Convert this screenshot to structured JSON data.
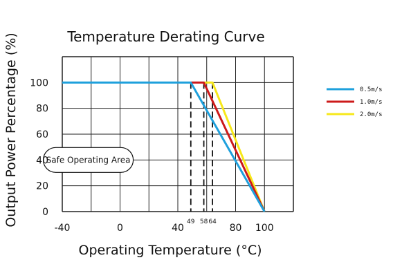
{
  "chart_data": {
    "type": "line",
    "title": "Temperature Derating Curve",
    "xlabel": "Operating Temperature (°C)",
    "ylabel": "Output Power Percentage (%)",
    "xlim": [
      -40,
      120
    ],
    "ylim": [
      0,
      120
    ],
    "x_ticks": [
      "-40",
      "0",
      "40",
      "80",
      "100"
    ],
    "x_tick_values": [
      -40,
      0,
      40,
      80,
      100
    ],
    "y_ticks": [
      "0",
      "20",
      "40",
      "60",
      "80",
      "100"
    ],
    "y_tick_values": [
      0,
      20,
      40,
      60,
      80,
      100
    ],
    "minor_x_ticks": [
      "49",
      "58",
      "64"
    ],
    "minor_x_tick_values": [
      49,
      58,
      64
    ],
    "grid": true,
    "legend_position": "right",
    "annotations": [
      {
        "text": "Safe Operating Area",
        "x": -22,
        "y": 40
      }
    ],
    "series": [
      {
        "name": "0.5m/s",
        "color": "#1ea0dc",
        "x": [
          -40,
          49,
          100
        ],
        "y": [
          100,
          100,
          0
        ]
      },
      {
        "name": "1.0m/s",
        "color": "#cc1a1a",
        "x": [
          49,
          58,
          100
        ],
        "y": [
          100,
          100,
          0
        ]
      },
      {
        "name": "2.0m/s",
        "color": "#f7e81a",
        "x": [
          58,
          64,
          100
        ],
        "y": [
          100,
          100,
          0
        ]
      }
    ],
    "dashed_guides": [
      49,
      58,
      64
    ]
  }
}
